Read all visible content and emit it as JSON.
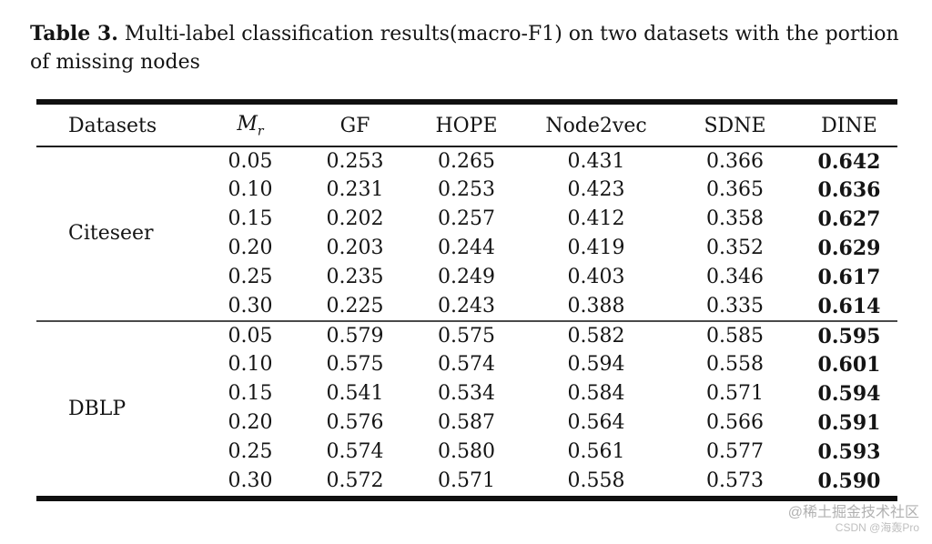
{
  "caption": {
    "label": "Table 3.",
    "line1": "Multi-label classification results(macro-F1) on two datasets with the portion",
    "line2": "of missing nodes"
  },
  "table": {
    "headers": {
      "datasets": "Datasets",
      "mr_base": "M",
      "mr_sub": "r",
      "methods": [
        "GF",
        "HOPE",
        "Node2vec",
        "SDNE",
        "DINE"
      ]
    },
    "bold_column": "DINE",
    "sections": [
      {
        "dataset": "Citeseer",
        "rows": [
          {
            "mr": "0.05",
            "values": [
              "0.253",
              "0.265",
              "0.431",
              "0.366",
              "0.642"
            ]
          },
          {
            "mr": "0.10",
            "values": [
              "0.231",
              "0.253",
              "0.423",
              "0.365",
              "0.636"
            ]
          },
          {
            "mr": "0.15",
            "values": [
              "0.202",
              "0.257",
              "0.412",
              "0.358",
              "0.627"
            ]
          },
          {
            "mr": "0.20",
            "values": [
              "0.203",
              "0.244",
              "0.419",
              "0.352",
              "0.629"
            ]
          },
          {
            "mr": "0.25",
            "values": [
              "0.235",
              "0.249",
              "0.403",
              "0.346",
              "0.617"
            ]
          },
          {
            "mr": "0.30",
            "values": [
              "0.225",
              "0.243",
              "0.388",
              "0.335",
              "0.614"
            ]
          }
        ]
      },
      {
        "dataset": "DBLP",
        "rows": [
          {
            "mr": "0.05",
            "values": [
              "0.579",
              "0.575",
              "0.582",
              "0.585",
              "0.595"
            ]
          },
          {
            "mr": "0.10",
            "values": [
              "0.575",
              "0.574",
              "0.594",
              "0.558",
              "0.601"
            ]
          },
          {
            "mr": "0.15",
            "values": [
              "0.541",
              "0.534",
              "0.584",
              "0.571",
              "0.594"
            ]
          },
          {
            "mr": "0.20",
            "values": [
              "0.576",
              "0.587",
              "0.564",
              "0.566",
              "0.591"
            ]
          },
          {
            "mr": "0.25",
            "values": [
              "0.574",
              "0.580",
              "0.561",
              "0.577",
              "0.593"
            ]
          },
          {
            "mr": "0.30",
            "values": [
              "0.572",
              "0.571",
              "0.558",
              "0.573",
              "0.590"
            ]
          }
        ]
      }
    ]
  },
  "watermark": {
    "line1": "@稀土掘金技术社区",
    "line2": "CSDN @海轰Pro"
  },
  "colors": {
    "text": "#141414",
    "rule": "#101010",
    "section_rule": "#4a4a4a",
    "watermark_line1": "#b1b1b1",
    "watermark_line2": "#bfbfbf"
  }
}
